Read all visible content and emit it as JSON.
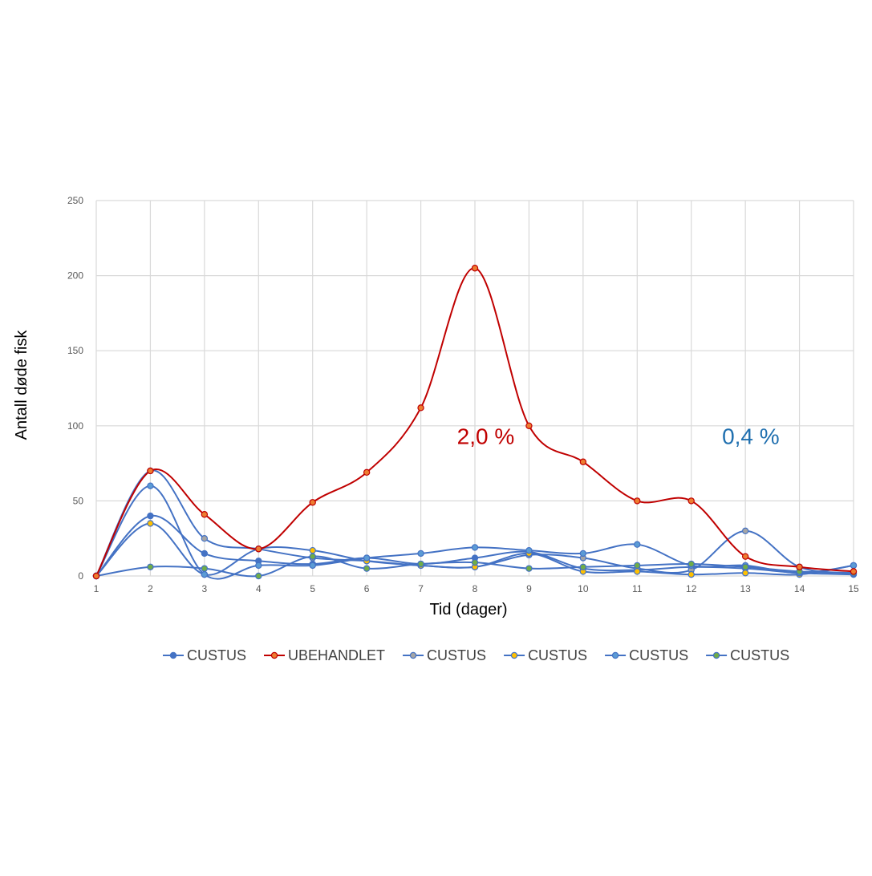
{
  "chart_data": {
    "type": "line",
    "title": "",
    "xlabel": "Tid (dager)",
    "ylabel": "Antall døde fisk",
    "x": [
      1,
      2,
      3,
      4,
      5,
      6,
      7,
      8,
      9,
      10,
      11,
      12,
      13,
      14,
      15
    ],
    "ylim": [
      0,
      250
    ],
    "yticks": [
      0,
      50,
      100,
      150,
      200,
      250
    ],
    "grid": true,
    "legend_position": "bottom",
    "smooth": true,
    "series": [
      {
        "name": "CUSTUS",
        "color": "#4472C4",
        "marker_fill": "#4472C4",
        "values": [
          0,
          40,
          15,
          10,
          8,
          12,
          8,
          12,
          16,
          5,
          4,
          6,
          5,
          2,
          1
        ]
      },
      {
        "name": "UBEHANDLET",
        "color": "#C00000",
        "marker_fill": "#ED7D31",
        "values": [
          0,
          70,
          41,
          18,
          49,
          69,
          112,
          205,
          100,
          76,
          50,
          50,
          13,
          6,
          3
        ]
      },
      {
        "name": "CUSTUS",
        "color": "#4472C4",
        "marker_fill": "#A5A5A5",
        "values": [
          0,
          70,
          25,
          18,
          12,
          10,
          7,
          6,
          14,
          12,
          5,
          4,
          30,
          6,
          2
        ]
      },
      {
        "name": "CUSTUS",
        "color": "#4472C4",
        "marker_fill": "#FFC000",
        "values": [
          0,
          35,
          1,
          18,
          17,
          10,
          7,
          6,
          15,
          3,
          3,
          1,
          2,
          1,
          7
        ]
      },
      {
        "name": "CUSTUS",
        "color": "#4472C4",
        "marker_fill": "#5B9BD5",
        "values": [
          0,
          60,
          1,
          7,
          7,
          12,
          15,
          19,
          17,
          15,
          21,
          7,
          7,
          2,
          7
        ]
      },
      {
        "name": "CUSTUS",
        "color": "#4472C4",
        "marker_fill": "#70AD47",
        "values": [
          0,
          6,
          5,
          0,
          13,
          5,
          8,
          9,
          5,
          6,
          7,
          8,
          6,
          3,
          2
        ]
      }
    ],
    "annotations": [
      {
        "text": "2,0 %",
        "color": "#C00000",
        "x": 8.2,
        "y": 88
      },
      {
        "text": "0,4 %",
        "color": "#1F6FAF",
        "x": 13.1,
        "y": 88
      }
    ]
  }
}
